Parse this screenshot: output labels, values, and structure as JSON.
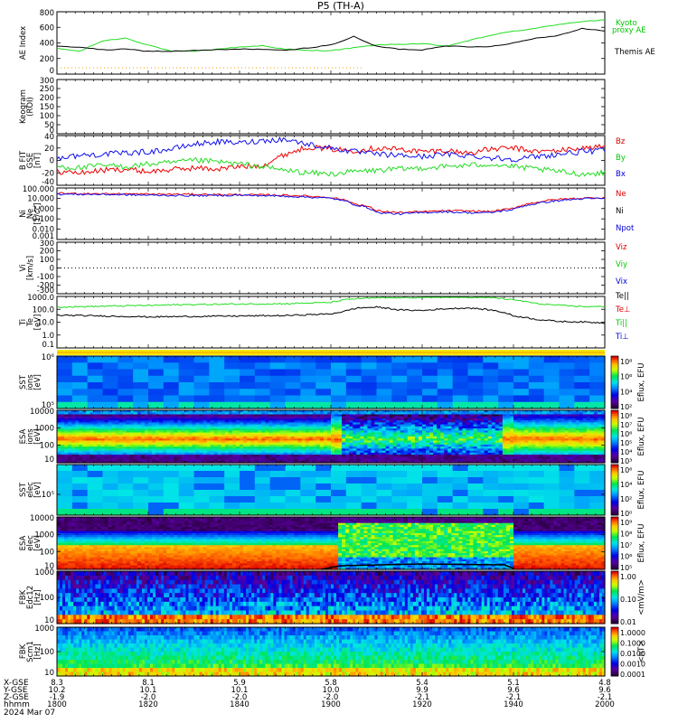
{
  "chart_data": {
    "title": "P5 (TH-A)",
    "type": "line",
    "time_axis": {
      "x_labels": [
        "8.3",
        "8.1",
        "5.9",
        "5.8",
        "5.4",
        "5.1",
        "4.8"
      ],
      "y_labels": [
        "10.2",
        "10.1",
        "10.1",
        "10.0",
        "9.9",
        "9.6",
        "9.6"
      ],
      "z_labels": [
        "-1.9",
        "-2.0",
        "-2.0",
        "-2.0",
        "-2.1",
        "-2.1",
        "-2.1"
      ],
      "hhmm_labels": [
        "1800",
        "1820",
        "1840",
        "1900",
        "1920",
        "1940",
        "2000"
      ],
      "row_labels": [
        "X-GSE",
        "Y-GSE",
        "Z-GSE",
        "hhmm"
      ],
      "date": "2024 Mar 07"
    },
    "panels": [
      {
        "id": "ae",
        "ylabel": "AE Index",
        "yticks": [
          "800",
          "600",
          "400",
          "200",
          "0"
        ],
        "ylim": [
          -100,
          800
        ],
        "legend": [
          {
            "label": "Kyoto",
            "color": "#00c800"
          },
          {
            "label": "proxy AE",
            "color": "#00c800"
          },
          {
            "label": "Themis AE",
            "color": "#000000"
          }
        ],
        "series": [
          {
            "name": "Kyoto proxy AE",
            "color": "#22dd22",
            "times": [
              0,
              5,
              10,
              15,
              20,
              25,
              30,
              35,
              40,
              45,
              50,
              55,
              60,
              65,
              70,
              75,
              80,
              85,
              90,
              95,
              100,
              105,
              110,
              115,
              120
            ],
            "values": [
              270,
              230,
              380,
              420,
              320,
              230,
              230,
              260,
              290,
              310,
              260,
              240,
              240,
              280,
              320,
              330,
              340,
              300,
              380,
              460,
              520,
              560,
              620,
              660,
              680
            ]
          },
          {
            "name": "Themis AE",
            "color": "#000000",
            "times": [
              0,
              5,
              10,
              15,
              20,
              25,
              30,
              35,
              40,
              45,
              50,
              55,
              60,
              65,
              70,
              75,
              80,
              85,
              90,
              95,
              100,
              105,
              110,
              115,
              120
            ],
            "values": [
              300,
              290,
              250,
              260,
              230,
              230,
              240,
              250,
              260,
              260,
              240,
              280,
              320,
              440,
              300,
              260,
              250,
              310,
              290,
              300,
              350,
              420,
              460,
              560,
              520
            ]
          }
        ]
      },
      {
        "id": "keogram",
        "ylabel": "Keogram",
        "ylabel2": "(ROI)",
        "yticks": [
          "300",
          "250",
          "200",
          "150",
          "100",
          "50",
          "0"
        ],
        "ylim": [
          0,
          300
        ]
      },
      {
        "id": "bfield",
        "ylabel": "B FIT",
        "ylabel2": "GSE",
        "ylabel3": "[nT]",
        "yticks": [
          "40",
          "20",
          "0",
          "-20",
          "-40"
        ],
        "ylim": [
          -40,
          40
        ],
        "legend": [
          {
            "label": "Bz",
            "color": "#dd0000"
          },
          {
            "label": "By",
            "color": "#00c800"
          },
          {
            "label": "Bx",
            "color": "#0000dd"
          }
        ],
        "series": [
          {
            "name": "Bz",
            "color": "#ee0000",
            "times": [
              0,
              5,
              10,
              15,
              20,
              25,
              30,
              35,
              40,
              45,
              50,
              55,
              60,
              65,
              70,
              75,
              80,
              85,
              90,
              95,
              100,
              105,
              110,
              115,
              120
            ],
            "values": [
              -18,
              -20,
              -16,
              -14,
              -18,
              -15,
              -12,
              -14,
              -10,
              -8,
              10,
              22,
              18,
              16,
              20,
              18,
              14,
              16,
              12,
              18,
              20,
              14,
              16,
              20,
              22
            ]
          },
          {
            "name": "By",
            "color": "#22dd22",
            "times": [
              0,
              5,
              10,
              15,
              20,
              25,
              30,
              35,
              40,
              45,
              50,
              55,
              60,
              65,
              70,
              75,
              80,
              85,
              90,
              95,
              100,
              105,
              110,
              115,
              120
            ],
            "values": [
              -10,
              -12,
              -8,
              -10,
              -6,
              -4,
              0,
              -2,
              -6,
              -10,
              -16,
              -20,
              -22,
              -18,
              -16,
              -14,
              -12,
              -10,
              -8,
              -6,
              -10,
              -14,
              -18,
              -22,
              -20
            ]
          },
          {
            "name": "Bx",
            "color": "#1010ee",
            "times": [
              0,
              5,
              10,
              15,
              20,
              25,
              30,
              35,
              40,
              45,
              50,
              55,
              60,
              65,
              70,
              75,
              80,
              85,
              90,
              95,
              100,
              105,
              110,
              115,
              120
            ],
            "values": [
              4,
              8,
              10,
              12,
              14,
              18,
              26,
              30,
              28,
              32,
              34,
              26,
              20,
              14,
              10,
              8,
              6,
              10,
              8,
              4,
              2,
              6,
              10,
              14,
              16
            ]
          }
        ]
      },
      {
        "id": "density",
        "ylabel": "Ni",
        "ylabel2": "Ne",
        "ylabel3": "[1/cc]",
        "yticks": [
          "100.000",
          "10.000",
          "1.000",
          "0.100",
          "0.010",
          "0.001"
        ],
        "ylog": true,
        "ylim": [
          0.001,
          100
        ],
        "legend": [
          {
            "label": "Ne",
            "color": "#dd0000"
          },
          {
            "label": "Ni",
            "color": "#000000"
          },
          {
            "label": "Npot",
            "color": "#0000dd"
          }
        ],
        "series": [
          {
            "name": "Ne",
            "color": "#ee0000",
            "times": [
              0,
              10,
              20,
              30,
              40,
              50,
              60,
              65,
              70,
              75,
              80,
              85,
              90,
              95,
              100,
              105,
              110,
              115,
              120
            ],
            "values": [
              30,
              28,
              25,
              24,
              22,
              20,
              12,
              3,
              0.6,
              0.4,
              0.5,
              0.6,
              0.6,
              0.5,
              1.0,
              4,
              8,
              10,
              12
            ]
          },
          {
            "name": "Npot",
            "color": "#1010ee",
            "times": [
              0,
              10,
              20,
              30,
              40,
              50,
              60,
              65,
              70,
              75,
              80,
              85,
              90,
              95,
              100,
              105,
              110,
              115,
              120
            ],
            "values": [
              25,
              24,
              20,
              18,
              20,
              16,
              10,
              2.5,
              0.4,
              0.3,
              0.4,
              0.5,
              0.4,
              0.4,
              0.8,
              3,
              6,
              9,
              10
            ]
          }
        ]
      },
      {
        "id": "velocity",
        "ylabel": "Vi",
        "ylabel2": "[km/s]",
        "yticks": [
          "300",
          "200",
          "100",
          "0",
          "-100",
          "-200",
          "-300"
        ],
        "ylim": [
          -300,
          300
        ],
        "legend": [
          {
            "label": "Viz",
            "color": "#dd0000"
          },
          {
            "label": "Viy",
            "color": "#00c800"
          },
          {
            "label": "Vix",
            "color": "#0000dd"
          }
        ]
      },
      {
        "id": "temperature",
        "ylabel": "Ti",
        "ylabel2": "Te",
        "ylabel3": "[eV]",
        "yticks": [
          "1000.0",
          "100.0",
          "10.0",
          "1.0",
          "0.1"
        ],
        "ylog": true,
        "ylim": [
          0.1,
          3000
        ],
        "legend": [
          {
            "label": "Te||",
            "color": "#000000"
          },
          {
            "label": "Te⊥",
            "color": "#dd0000"
          },
          {
            "label": "Ti||",
            "color": "#00c800"
          },
          {
            "label": "Ti⊥",
            "color": "#0000dd"
          }
        ],
        "series": [
          {
            "name": "Te||",
            "color": "#000000",
            "times": [
              0,
              10,
              20,
              30,
              40,
              50,
              60,
              63,
              66,
              70,
              75,
              80,
              85,
              90,
              95,
              100,
              105,
              110,
              115,
              120
            ],
            "values": [
              70,
              60,
              50,
              55,
              60,
              65,
              90,
              150,
              300,
              350,
              200,
              180,
              250,
              300,
              200,
              60,
              30,
              20,
              18,
              15
            ]
          },
          {
            "name": "Ti||",
            "color": "#22dd22",
            "times": [
              0,
              10,
              20,
              30,
              40,
              50,
              60,
              63,
              66,
              70,
              75,
              80,
              85,
              90,
              95,
              100,
              105,
              110,
              115,
              120
            ],
            "values": [
              350,
              420,
              500,
              600,
              650,
              700,
              900,
              1500,
              2000,
              2200,
              2300,
              2500,
              2700,
              2600,
              2400,
              1500,
              700,
              500,
              400,
              380
            ]
          }
        ]
      },
      {
        "id": "sst_ion",
        "ylabel": "SST",
        "ylabel2": "ions",
        "ylabel3": "[eV]",
        "yticks": [
          "10⁶",
          "10⁵"
        ],
        "colorbar": {
          "label": "Eflux, EFU",
          "ticks": [
            "10⁸",
            "10⁶",
            "10⁴",
            "10²"
          ]
        }
      },
      {
        "id": "esa_ion",
        "ylabel": "ESA",
        "ylabel2": "ions",
        "ylabel3": "[eV]",
        "yticks": [
          "10000",
          "1000",
          "100",
          "10"
        ],
        "colorbar": {
          "label": "Eflux, EFU",
          "ticks": [
            "10⁸",
            "10⁷",
            "10⁶",
            "10⁵",
            "10⁴",
            "10³"
          ]
        }
      },
      {
        "id": "sst_elec",
        "ylabel": "SST",
        "ylabel2": "elec",
        "ylabel3": "[eV]",
        "yticks": [
          "10⁵"
        ],
        "colorbar": {
          "label": "Eflux, EFU",
          "ticks": [
            "10⁶",
            "10⁴",
            "10²",
            "10⁰"
          ]
        }
      },
      {
        "id": "esa_elec",
        "ylabel": "ESA",
        "ylabel2": "elec",
        "ylabel3": "[eV]",
        "yticks": [
          "10000",
          "1000",
          "100",
          "10"
        ],
        "colorbar": {
          "label": "Eflux, EFU",
          "ticks": [
            "10⁹",
            "10⁸",
            "10⁷",
            "10⁶",
            "10⁵"
          ]
        }
      },
      {
        "id": "fbk_e",
        "ylabel": "FBK",
        "ylabel2": "Edc12",
        "ylabel3": "[Hz]",
        "yticks": [
          "1000",
          "100",
          "10"
        ],
        "colorbar": {
          "label": "<mV/m>",
          "ticks": [
            "1.00",
            "0.10",
            "0.01"
          ]
        }
      },
      {
        "id": "fbk_b",
        "ylabel": "FBK",
        "ylabel2": "Scm1",
        "ylabel3": "[Hz]",
        "yticks": [
          "1000",
          "100",
          "10"
        ],
        "colorbar": {
          "label": "<nT>",
          "ticks": [
            "1.0000",
            "0.1000",
            "0.0100",
            "0.0010",
            "0.0001"
          ]
        }
      }
    ]
  }
}
